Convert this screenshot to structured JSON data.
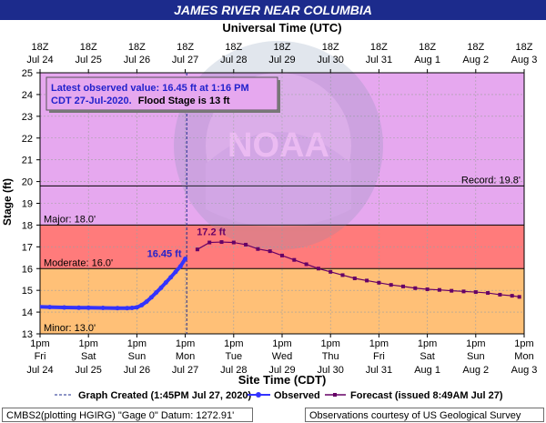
{
  "page": {
    "title": "JAMES RIVER NEAR COLUMBIA",
    "top_axis_title": "Universal Time (UTC)",
    "bottom_axis_title": "Site Time (CDT)",
    "y_axis_title": "Stage (ft)"
  },
  "info_box": {
    "line1": "Latest observed value: 16.45 ft at 1:16 PM",
    "line2_blue": "CDT 27-Jul-2020.",
    "line2_black": "Flood Stage is 13 ft"
  },
  "legend": {
    "created": "Graph Created (1:45PM Jul 27, 2020)",
    "observed": "Observed",
    "forecast": "Forecast (issued 8:49AM Jul 27)"
  },
  "footer": {
    "left": "CMBS2(plotting HGIRG) \"Gage 0\" Datum: 1272.91'",
    "right": "Observations courtesy of US Geological Survey"
  },
  "watermark": {
    "text": "NOAA"
  },
  "colors": {
    "title_bar": "#1c2b8c",
    "record_zone": "#e6a8ef",
    "major_zone": "#ff7b7b",
    "moderate_zone": "#ffc077",
    "minor_zone": "#ffff99",
    "plot_bg": "#ffffff",
    "observed": "#3333ff",
    "forecast": "#660066",
    "created_line": "#1c2b8c"
  },
  "chart_data": {
    "type": "line",
    "title": "JAMES RIVER NEAR COLUMBIA",
    "xlabel": "Site Time (CDT)",
    "ylabel": "Stage (ft)",
    "x_top_label": "Universal Time (UTC)",
    "ylim": [
      13,
      25
    ],
    "y_ticks": [
      13,
      14,
      15,
      16,
      17,
      18,
      19,
      20,
      21,
      22,
      23,
      24,
      25
    ],
    "xlim_days": [
      0,
      10
    ],
    "x_ticks_bottom": [
      {
        "t": 0,
        "top": "1pm",
        "mid": "Fri",
        "bot": "Jul 24"
      },
      {
        "t": 1,
        "top": "1pm",
        "mid": "Sat",
        "bot": "Jul 25"
      },
      {
        "t": 2,
        "top": "1pm",
        "mid": "Sun",
        "bot": "Jul 26"
      },
      {
        "t": 3,
        "top": "1pm",
        "mid": "Mon",
        "bot": "Jul 27"
      },
      {
        "t": 4,
        "top": "1pm",
        "mid": "Tue",
        "bot": "Jul 28"
      },
      {
        "t": 5,
        "top": "1pm",
        "mid": "Wed",
        "bot": "Jul 29"
      },
      {
        "t": 6,
        "top": "1pm",
        "mid": "Thu",
        "bot": "Jul 30"
      },
      {
        "t": 7,
        "top": "1pm",
        "mid": "Fri",
        "bot": "Jul 31"
      },
      {
        "t": 8,
        "top": "1pm",
        "mid": "Sat",
        "bot": "Aug 1"
      },
      {
        "t": 9,
        "top": "1pm",
        "mid": "Sun",
        "bot": "Aug 2"
      },
      {
        "t": 10,
        "top": "1pm",
        "mid": "Mon",
        "bot": "Aug 3"
      }
    ],
    "x_ticks_top": [
      {
        "t": 0,
        "top": "18Z",
        "bot": "Jul 24"
      },
      {
        "t": 1,
        "top": "18Z",
        "bot": "Jul 25"
      },
      {
        "t": 2,
        "top": "18Z",
        "bot": "Jul 26"
      },
      {
        "t": 3,
        "top": "18Z",
        "bot": "Jul 27"
      },
      {
        "t": 4,
        "top": "18Z",
        "bot": "Jul 28"
      },
      {
        "t": 5,
        "top": "18Z",
        "bot": "Jul 29"
      },
      {
        "t": 6,
        "top": "18Z",
        "bot": "Jul 30"
      },
      {
        "t": 7,
        "top": "18Z",
        "bot": "Jul 31"
      },
      {
        "t": 8,
        "top": "18Z",
        "bot": "Aug 1"
      },
      {
        "t": 9,
        "top": "18Z",
        "bot": "Aug 2"
      },
      {
        "t": 10,
        "top": "18Z",
        "bot": "Aug 3"
      }
    ],
    "flood_categories": [
      {
        "name": "Minor",
        "label": "Minor: 13.0'",
        "stage": 13.0
      },
      {
        "name": "Moderate",
        "label": "Moderate: 16.0'",
        "stage": 16.0
      },
      {
        "name": "Major",
        "label": "Major: 18.0'",
        "stage": 18.0
      }
    ],
    "record": {
      "label": "Record: 19.8'",
      "stage": 19.8
    },
    "graph_created_t": 3.03,
    "annotations": [
      {
        "text": "16.45 ft",
        "t": 3.0,
        "y": 16.45,
        "series": "observed"
      },
      {
        "text": "17.2 ft",
        "t": 3.5,
        "y": 17.2,
        "series": "forecast"
      }
    ],
    "series": [
      {
        "name": "Observed",
        "color": "#3333ff",
        "points": [
          [
            -0.05,
            14.25
          ],
          [
            0.2,
            14.23
          ],
          [
            0.5,
            14.21
          ],
          [
            0.8,
            14.2
          ],
          [
            1.0,
            14.2
          ],
          [
            1.3,
            14.19
          ],
          [
            1.6,
            14.18
          ],
          [
            1.8,
            14.18
          ],
          [
            1.9,
            14.19
          ],
          [
            2.0,
            14.22
          ],
          [
            2.1,
            14.32
          ],
          [
            2.2,
            14.48
          ],
          [
            2.3,
            14.68
          ],
          [
            2.4,
            14.9
          ],
          [
            2.5,
            15.12
          ],
          [
            2.6,
            15.36
          ],
          [
            2.7,
            15.6
          ],
          [
            2.8,
            15.85
          ],
          [
            2.9,
            16.1
          ],
          [
            3.0,
            16.45
          ]
        ]
      },
      {
        "name": "Forecast (issued 8:49AM Jul 27)",
        "color": "#660066",
        "points": [
          [
            3.25,
            16.88
          ],
          [
            3.5,
            17.2
          ],
          [
            3.75,
            17.22
          ],
          [
            4.0,
            17.2
          ],
          [
            4.25,
            17.1
          ],
          [
            4.5,
            16.9
          ],
          [
            4.75,
            16.8
          ],
          [
            5.0,
            16.6
          ],
          [
            5.25,
            16.4
          ],
          [
            5.5,
            16.2
          ],
          [
            5.75,
            16.0
          ],
          [
            6.0,
            15.85
          ],
          [
            6.25,
            15.7
          ],
          [
            6.5,
            15.55
          ],
          [
            6.75,
            15.45
          ],
          [
            7.0,
            15.35
          ],
          [
            7.25,
            15.25
          ],
          [
            7.5,
            15.18
          ],
          [
            7.75,
            15.1
          ],
          [
            8.0,
            15.05
          ],
          [
            8.25,
            15.02
          ],
          [
            8.5,
            14.98
          ],
          [
            8.75,
            14.95
          ],
          [
            9.0,
            14.92
          ],
          [
            9.25,
            14.88
          ],
          [
            9.5,
            14.8
          ],
          [
            9.75,
            14.75
          ],
          [
            9.9,
            14.7
          ]
        ]
      }
    ]
  }
}
